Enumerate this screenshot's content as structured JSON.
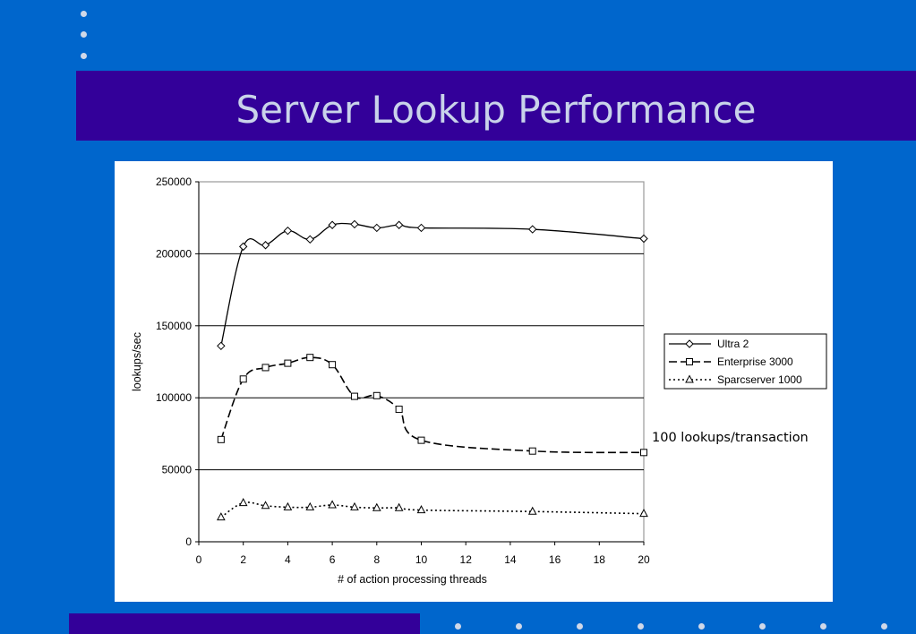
{
  "slide": {
    "title": "Server Lookup Performance",
    "colors": {
      "background": "#0066cc",
      "band": "#330099",
      "title_text": "#c9d3ea"
    }
  },
  "chart_data": {
    "type": "line",
    "title": "",
    "xlabel": "# of action processing threads",
    "ylabel": "lookups/sec",
    "xlim": [
      0,
      20
    ],
    "ylim": [
      0,
      250000
    ],
    "xticks": [
      "0",
      "2",
      "4",
      "6",
      "8",
      "10",
      "12",
      "14",
      "16",
      "18",
      "20"
    ],
    "yticks": [
      "0",
      "50000",
      "100000",
      "150000",
      "200000",
      "250000"
    ],
    "grid": "horizontal",
    "legend_position": "right",
    "annotation": "100 lookups/transaction",
    "series": [
      {
        "name": "Ultra 2",
        "marker": "diamond",
        "line": "solid",
        "x": [
          1,
          2,
          3,
          4,
          5,
          6,
          7,
          8,
          9,
          10,
          15,
          20
        ],
        "y": [
          136000,
          205000,
          206000,
          216000,
          210000,
          220000,
          220500,
          218000,
          220000,
          218000,
          217000,
          210500
        ]
      },
      {
        "name": "Enterprise 3000",
        "marker": "square",
        "line": "dashed",
        "x": [
          1,
          2,
          3,
          4,
          5,
          6,
          7,
          8,
          9,
          10,
          15,
          20
        ],
        "y": [
          71000,
          113000,
          121000,
          124000,
          128000,
          123000,
          101000,
          101500,
          92000,
          70500,
          63000,
          62000
        ]
      },
      {
        "name": "Sparcserver 1000",
        "marker": "triangle",
        "line": "dotted",
        "x": [
          1,
          2,
          3,
          4,
          5,
          6,
          7,
          8,
          9,
          10,
          15,
          20
        ],
        "y": [
          17000,
          27000,
          25000,
          24000,
          24000,
          25500,
          24000,
          23500,
          23500,
          22000,
          21000,
          19500
        ]
      }
    ]
  }
}
